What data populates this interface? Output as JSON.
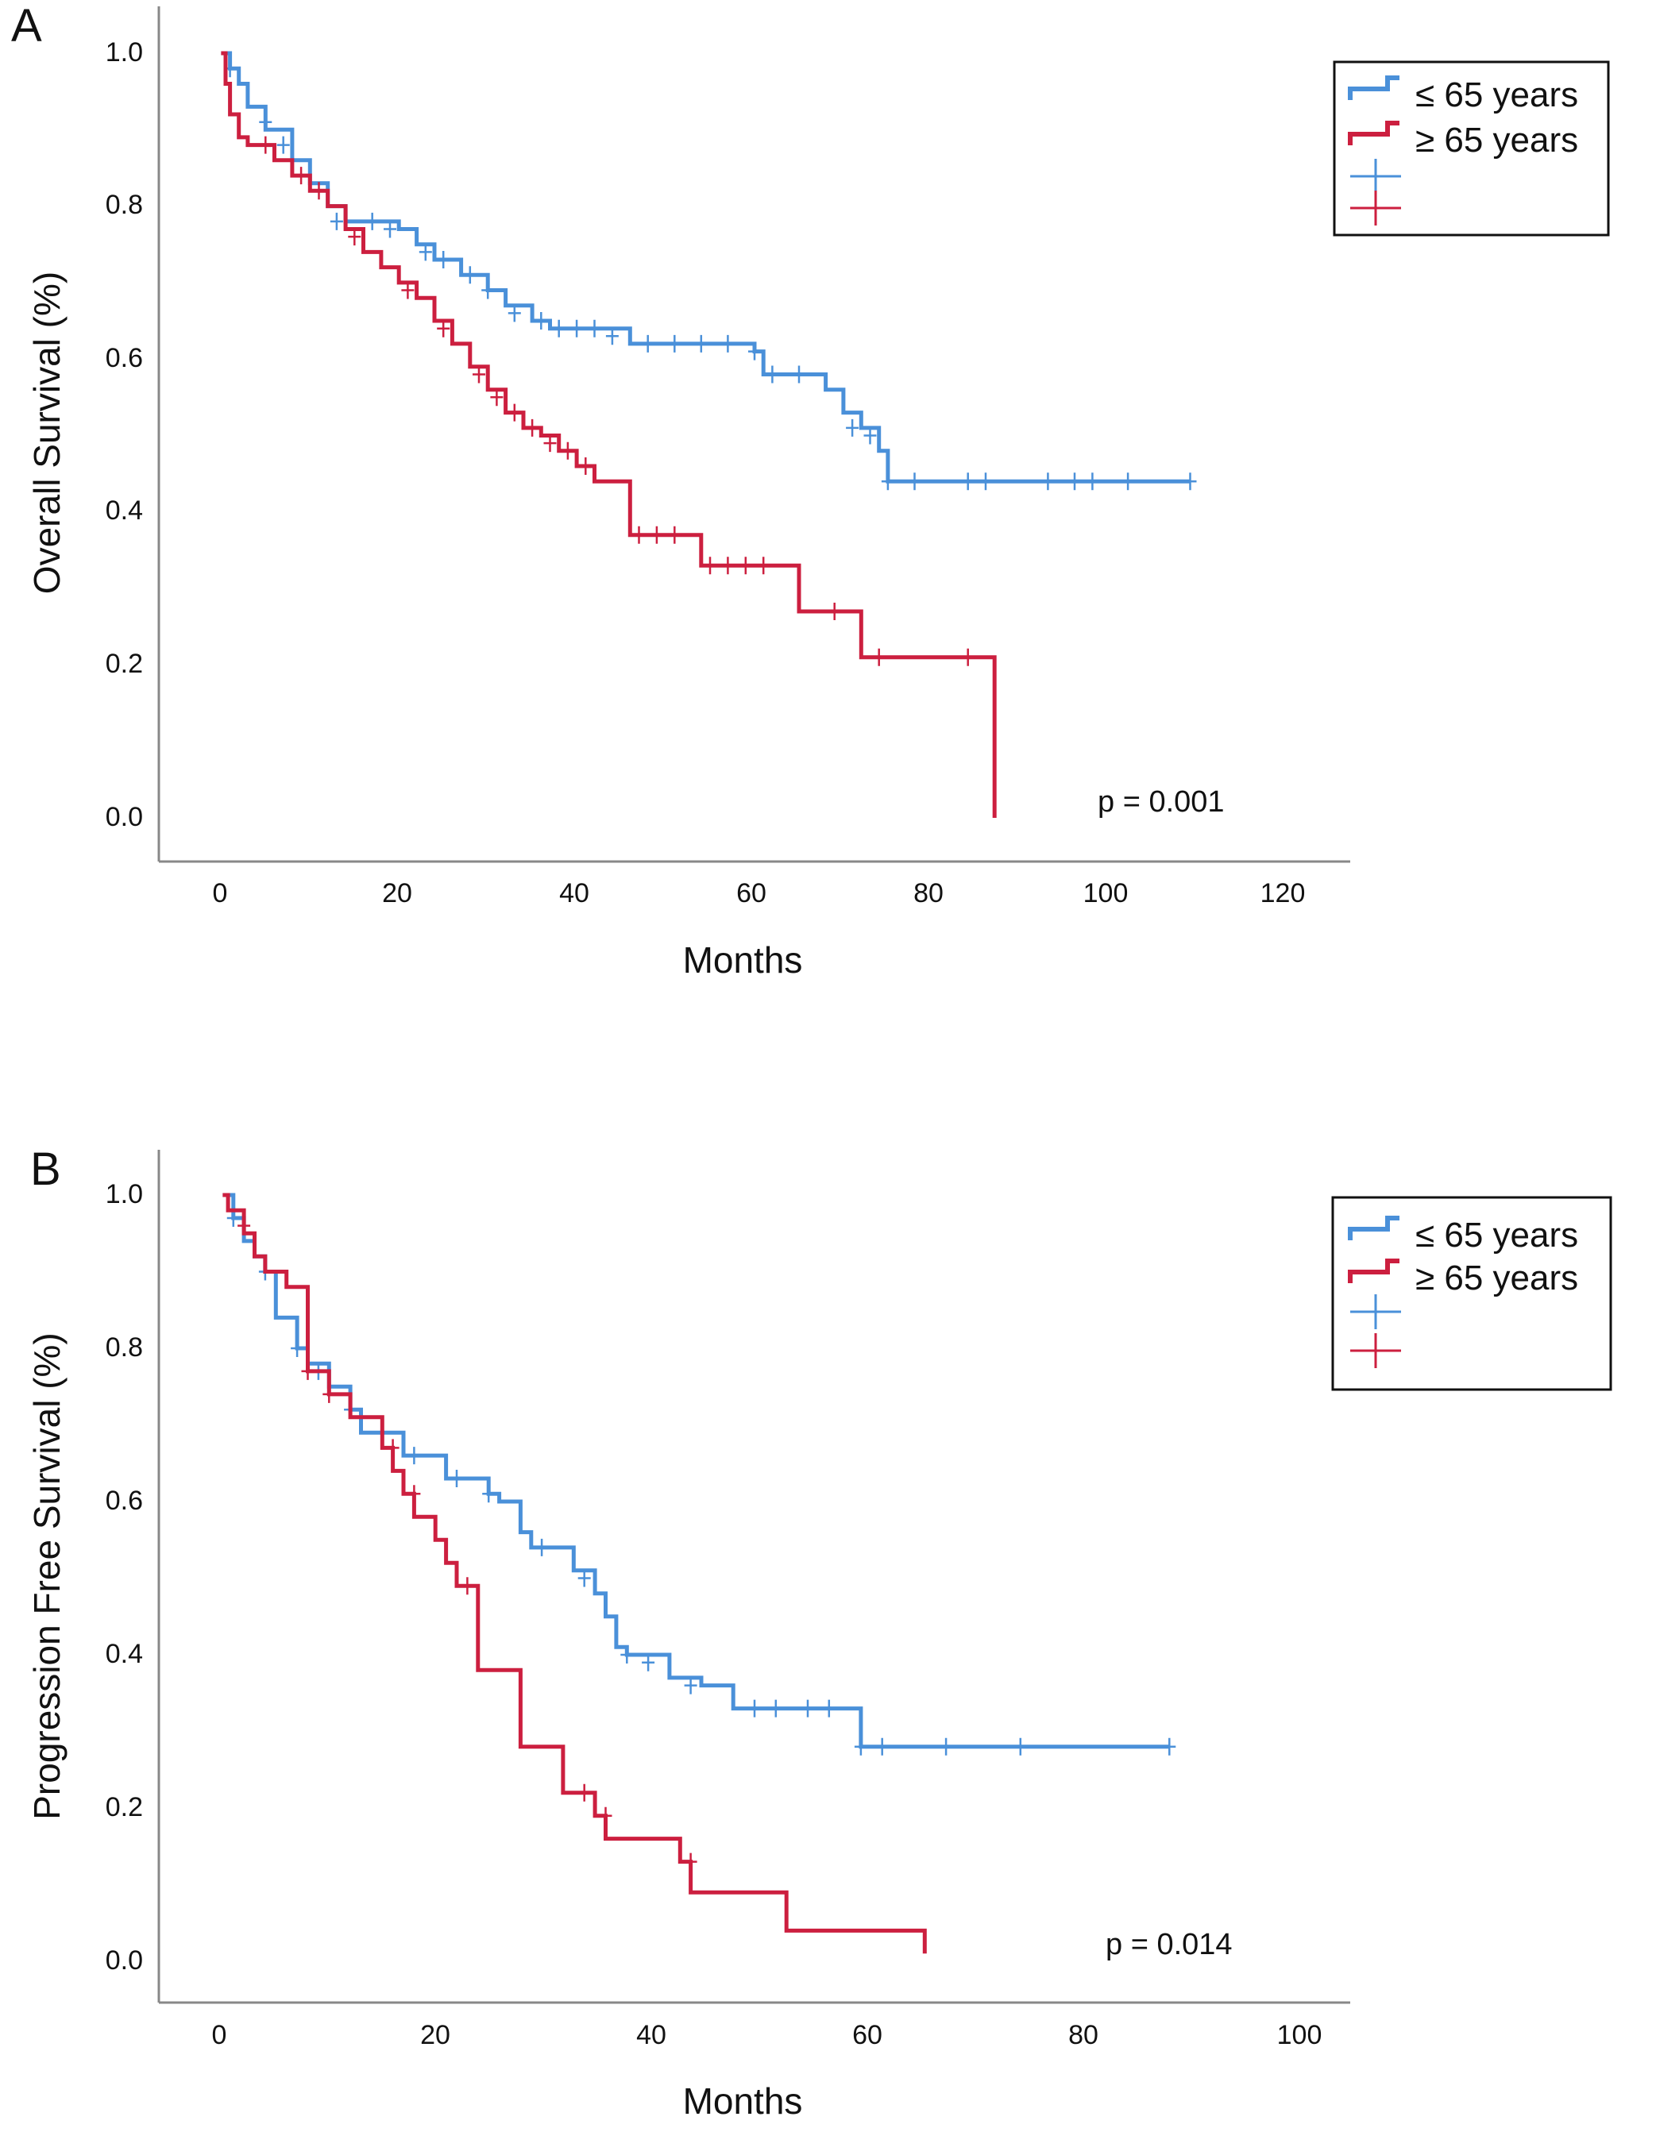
{
  "colors": {
    "blue": "#4a90d9",
    "red": "#cc1f3f",
    "axis": "#888888"
  },
  "legend": {
    "blue_label": "≤  65 years",
    "red_label": "≥ 65 years"
  },
  "chart_data": [
    {
      "type": "line",
      "panel": "A",
      "xlabel": "Months",
      "ylabel": "Overall Survival (%)",
      "xlim": [
        -7,
        127
      ],
      "ylim": [
        0,
        1
      ],
      "xticks": [
        "0",
        "20",
        "40",
        "60",
        "80",
        "100",
        "120"
      ],
      "yticks": [
        "0.0",
        "0.2",
        "0.4",
        "0.6",
        "0.8",
        "1.0"
      ],
      "annotation": "p = 0.001",
      "series": [
        {
          "name": "≤  65 years",
          "color": "#4a90d9",
          "steps": [
            [
              0,
              1.0
            ],
            [
              1,
              0.98
            ],
            [
              2,
              0.96
            ],
            [
              3,
              0.93
            ],
            [
              5,
              0.9
            ],
            [
              8,
              0.86
            ],
            [
              10,
              0.83
            ],
            [
              12,
              0.8
            ],
            [
              14,
              0.78
            ],
            [
              20,
              0.77
            ],
            [
              22,
              0.75
            ],
            [
              24,
              0.73
            ],
            [
              27,
              0.71
            ],
            [
              30,
              0.69
            ],
            [
              32,
              0.67
            ],
            [
              35,
              0.65
            ],
            [
              37,
              0.64
            ],
            [
              46,
              0.62
            ],
            [
              60,
              0.61
            ],
            [
              61,
              0.58
            ],
            [
              68,
              0.56
            ],
            [
              70,
              0.53
            ],
            [
              72,
              0.51
            ],
            [
              74,
              0.48
            ],
            [
              75,
              0.44
            ],
            [
              109,
              0.44
            ]
          ],
          "censors": [
            [
              1,
              0.98
            ],
            [
              5,
              0.91
            ],
            [
              7,
              0.88
            ],
            [
              13,
              0.78
            ],
            [
              17,
              0.78
            ],
            [
              19,
              0.77
            ],
            [
              23,
              0.74
            ],
            [
              25,
              0.73
            ],
            [
              28,
              0.71
            ],
            [
              30,
              0.69
            ],
            [
              33,
              0.66
            ],
            [
              36,
              0.65
            ],
            [
              38,
              0.64
            ],
            [
              40,
              0.64
            ],
            [
              42,
              0.64
            ],
            [
              44,
              0.63
            ],
            [
              48,
              0.62
            ],
            [
              51,
              0.62
            ],
            [
              54,
              0.62
            ],
            [
              57,
              0.62
            ],
            [
              60,
              0.61
            ],
            [
              62,
              0.58
            ],
            [
              65,
              0.58
            ],
            [
              71,
              0.51
            ],
            [
              73,
              0.5
            ],
            [
              75,
              0.44
            ],
            [
              78,
              0.44
            ],
            [
              84,
              0.44
            ],
            [
              86,
              0.44
            ],
            [
              93,
              0.44
            ],
            [
              96,
              0.44
            ],
            [
              98,
              0.44
            ],
            [
              102,
              0.44
            ],
            [
              109,
              0.44
            ]
          ]
        },
        {
          "name": "≥ 65 years",
          "color": "#cc1f3f",
          "steps": [
            [
              0,
              1.0
            ],
            [
              0.5,
              0.96
            ],
            [
              1,
              0.92
            ],
            [
              2,
              0.89
            ],
            [
              3,
              0.88
            ],
            [
              6,
              0.86
            ],
            [
              8,
              0.84
            ],
            [
              10,
              0.82
            ],
            [
              12,
              0.8
            ],
            [
              14,
              0.77
            ],
            [
              16,
              0.74
            ],
            [
              18,
              0.72
            ],
            [
              20,
              0.7
            ],
            [
              22,
              0.68
            ],
            [
              24,
              0.65
            ],
            [
              26,
              0.62
            ],
            [
              28,
              0.59
            ],
            [
              30,
              0.56
            ],
            [
              32,
              0.53
            ],
            [
              34,
              0.51
            ],
            [
              36,
              0.5
            ],
            [
              38,
              0.48
            ],
            [
              40,
              0.46
            ],
            [
              42,
              0.44
            ],
            [
              46,
              0.37
            ],
            [
              54,
              0.33
            ],
            [
              65,
              0.27
            ],
            [
              72,
              0.21
            ],
            [
              87,
              0.21
            ],
            [
              87,
              0.0
            ]
          ],
          "censors": [
            [
              5,
              0.88
            ],
            [
              9,
              0.84
            ],
            [
              11,
              0.82
            ],
            [
              15,
              0.76
            ],
            [
              21,
              0.69
            ],
            [
              25,
              0.64
            ],
            [
              29,
              0.58
            ],
            [
              31,
              0.55
            ],
            [
              33,
              0.53
            ],
            [
              35,
              0.51
            ],
            [
              37,
              0.49
            ],
            [
              39,
              0.48
            ],
            [
              41,
              0.46
            ],
            [
              47,
              0.37
            ],
            [
              49,
              0.37
            ],
            [
              51,
              0.37
            ],
            [
              55,
              0.33
            ],
            [
              57,
              0.33
            ],
            [
              59,
              0.33
            ],
            [
              61,
              0.33
            ],
            [
              69,
              0.27
            ],
            [
              74,
              0.21
            ],
            [
              84,
              0.21
            ]
          ]
        }
      ]
    },
    {
      "type": "line",
      "panel": "B",
      "xlabel": "Months",
      "ylabel": "Progression Free Survival (%)",
      "xlim": [
        -6,
        106
      ],
      "ylim": [
        0,
        1
      ],
      "xticks": [
        "0",
        "20",
        "40",
        "60",
        "80",
        "100"
      ],
      "yticks": [
        "0.0",
        "0.2",
        "0.4",
        "0.6",
        "0.8",
        "1.0"
      ],
      "annotation": "p = 0.014",
      "series": [
        {
          "name": "≤  65 years",
          "color": "#4a90d9",
          "steps": [
            [
              0,
              1.0
            ],
            [
              1,
              0.97
            ],
            [
              2,
              0.94
            ],
            [
              3,
              0.92
            ],
            [
              4,
              0.9
            ],
            [
              5,
              0.84
            ],
            [
              7,
              0.8
            ],
            [
              8,
              0.78
            ],
            [
              10,
              0.75
            ],
            [
              12,
              0.72
            ],
            [
              13,
              0.69
            ],
            [
              17,
              0.66
            ],
            [
              21,
              0.63
            ],
            [
              25,
              0.61
            ],
            [
              26,
              0.6
            ],
            [
              28,
              0.56
            ],
            [
              29,
              0.54
            ],
            [
              33,
              0.51
            ],
            [
              35,
              0.48
            ],
            [
              36,
              0.45
            ],
            [
              37,
              0.41
            ],
            [
              38,
              0.4
            ],
            [
              42,
              0.37
            ],
            [
              45,
              0.36
            ],
            [
              48,
              0.33
            ],
            [
              60,
              0.28
            ],
            [
              89,
              0.28
            ]
          ],
          "censors": [
            [
              1,
              0.97
            ],
            [
              4,
              0.9
            ],
            [
              7,
              0.8
            ],
            [
              9,
              0.77
            ],
            [
              12,
              0.72
            ],
            [
              15,
              0.69
            ],
            [
              18,
              0.66
            ],
            [
              22,
              0.63
            ],
            [
              25,
              0.61
            ],
            [
              30,
              0.54
            ],
            [
              34,
              0.5
            ],
            [
              38,
              0.4
            ],
            [
              40,
              0.39
            ],
            [
              44,
              0.36
            ],
            [
              50,
              0.33
            ],
            [
              52,
              0.33
            ],
            [
              55,
              0.33
            ],
            [
              57,
              0.33
            ],
            [
              60,
              0.28
            ],
            [
              62,
              0.28
            ],
            [
              68,
              0.28
            ],
            [
              75,
              0.28
            ],
            [
              89,
              0.28
            ]
          ]
        },
        {
          "name": "≥ 65 years",
          "color": "#cc1f3f",
          "steps": [
            [
              0,
              1.0
            ],
            [
              0.5,
              0.98
            ],
            [
              2,
              0.95
            ],
            [
              3,
              0.92
            ],
            [
              4,
              0.9
            ],
            [
              6,
              0.88
            ],
            [
              8,
              0.77
            ],
            [
              10,
              0.74
            ],
            [
              12,
              0.71
            ],
            [
              15,
              0.67
            ],
            [
              16,
              0.64
            ],
            [
              17,
              0.61
            ],
            [
              18,
              0.58
            ],
            [
              20,
              0.55
            ],
            [
              21,
              0.52
            ],
            [
              22,
              0.49
            ],
            [
              24,
              0.38
            ],
            [
              28,
              0.28
            ],
            [
              32,
              0.22
            ],
            [
              35,
              0.19
            ],
            [
              36,
              0.16
            ],
            [
              43,
              0.13
            ],
            [
              44,
              0.09
            ],
            [
              53,
              0.04
            ],
            [
              66,
              0.04
            ],
            [
              66,
              0.01
            ]
          ],
          "censors": [
            [
              2,
              0.96
            ],
            [
              8,
              0.77
            ],
            [
              10,
              0.74
            ],
            [
              16,
              0.67
            ],
            [
              18,
              0.61
            ],
            [
              23,
              0.49
            ],
            [
              34,
              0.22
            ],
            [
              36,
              0.19
            ],
            [
              44,
              0.13
            ]
          ]
        }
      ]
    }
  ]
}
